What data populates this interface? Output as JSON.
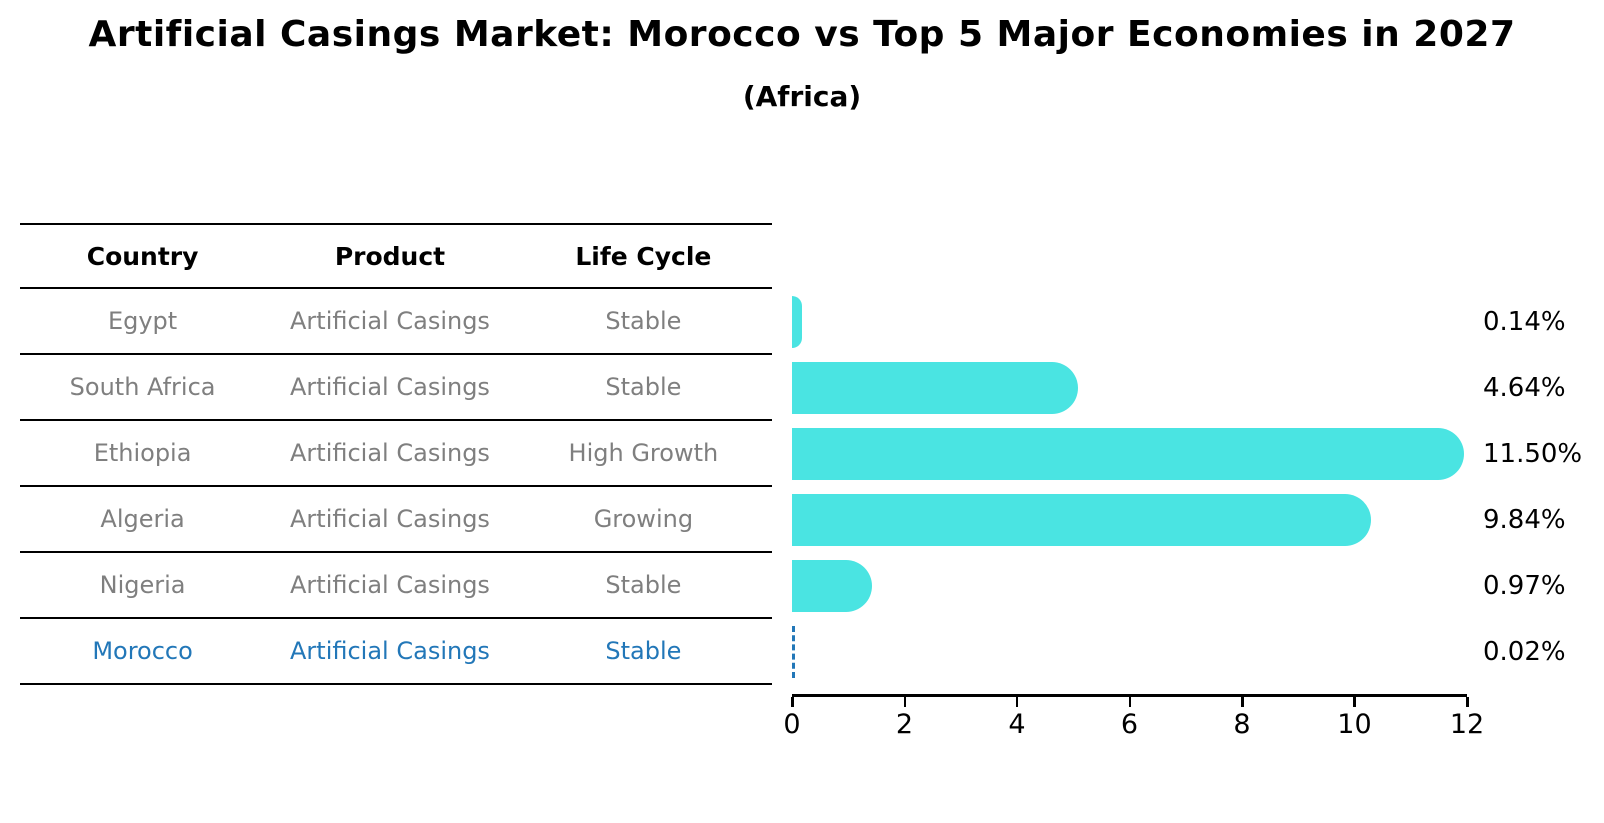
{
  "title": "Artificial Casings Market: Morocco vs Top 5 Major Economies in 2027",
  "subtitle": "(Africa)",
  "table": {
    "headers": [
      "Country",
      "Product",
      "Life Cycle"
    ],
    "rows": [
      {
        "country": "Egypt",
        "product": "Artificial Casings",
        "life_cycle": "Stable"
      },
      {
        "country": "South Africa",
        "product": "Artificial Casings",
        "life_cycle": "Stable"
      },
      {
        "country": "Ethiopia",
        "product": "Artificial Casings",
        "life_cycle": "High Growth"
      },
      {
        "country": "Algeria",
        "product": "Artificial Casings",
        "life_cycle": "Growing"
      },
      {
        "country": "Nigeria",
        "product": "Artificial Casings",
        "life_cycle": "Stable"
      },
      {
        "country": "Morocco",
        "product": "Artificial Casings",
        "life_cycle": "Stable"
      }
    ],
    "highlight_row": "Morocco"
  },
  "chart_data": {
    "type": "bar",
    "orientation": "horizontal",
    "title": "Artificial Casings Market: Morocco vs Top 5 Major Economies in 2027",
    "subtitle": "(Africa)",
    "categories": [
      "Egypt",
      "South Africa",
      "Ethiopia",
      "Algeria",
      "Nigeria",
      "Morocco"
    ],
    "values": [
      0.14,
      4.64,
      11.5,
      9.84,
      0.97,
      0.02
    ],
    "value_labels": [
      "0.14%",
      "4.64%",
      "11.50%",
      "9.84%",
      "0.97%",
      "0.02%"
    ],
    "xlabel": "",
    "ylabel": "",
    "xlim": [
      0,
      12
    ],
    "xticks": [
      0,
      2,
      4,
      6,
      8,
      10,
      12
    ],
    "xtick_labels": [
      "0",
      "2",
      "4",
      "6",
      "8",
      "10",
      "12"
    ],
    "grid": false,
    "legend": false,
    "highlight_index": 5,
    "bar_color": "#4ae4e2",
    "highlight_color": "#2277b8"
  },
  "colors": {
    "bar": "#4ae4e2",
    "highlight": "#2277b8",
    "gray_text": "#7f7f7f",
    "black": "#000000",
    "background": "#ffffff"
  }
}
